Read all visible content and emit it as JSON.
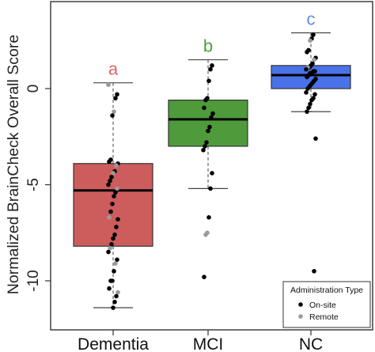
{
  "chart_data": {
    "type": "boxplot",
    "title": "",
    "xlabel": "",
    "ylabel": "Normalized BrainCheck Overall Score",
    "ylim": [
      -12.5,
      4.5
    ],
    "y_ticks": [
      0,
      -5,
      -10
    ],
    "y_tick_labels": [
      "0",
      "-5",
      "-10"
    ],
    "grid": false,
    "categories": [
      "Dementia",
      "MCI",
      "NC"
    ],
    "groups": [
      {
        "name": "Dementia",
        "letter": "a",
        "box_color": "#cd5c5c",
        "letter_color": "#e06666",
        "stats": {
          "whisker_low": -11.4,
          "q1": -8.2,
          "median": -5.3,
          "q3": -3.9,
          "whisker_high": 0.3
        },
        "points": [
          {
            "y": 0.2,
            "admin": "Remote"
          },
          {
            "y": -0.3,
            "admin": "On-site"
          },
          {
            "y": -0.5,
            "admin": "On-site"
          },
          {
            "y": -1.2,
            "admin": "Remote"
          },
          {
            "y": -1.4,
            "admin": "On-site"
          },
          {
            "y": -3.7,
            "admin": "On-site"
          },
          {
            "y": -3.8,
            "admin": "On-site"
          },
          {
            "y": -3.9,
            "admin": "On-site"
          },
          {
            "y": -4.0,
            "admin": "Remote"
          },
          {
            "y": -4.3,
            "admin": "On-site"
          },
          {
            "y": -4.4,
            "admin": "Remote"
          },
          {
            "y": -4.6,
            "admin": "On-site"
          },
          {
            "y": -4.8,
            "admin": "On-site"
          },
          {
            "y": -5.0,
            "admin": "On-site"
          },
          {
            "y": -5.2,
            "admin": "Remote"
          },
          {
            "y": -5.4,
            "admin": "On-site"
          },
          {
            "y": -5.6,
            "admin": "On-site"
          },
          {
            "y": -6.0,
            "admin": "On-site"
          },
          {
            "y": -6.4,
            "admin": "On-site"
          },
          {
            "y": -6.7,
            "admin": "Remote"
          },
          {
            "y": -6.8,
            "admin": "On-site"
          },
          {
            "y": -7.2,
            "admin": "On-site"
          },
          {
            "y": -7.6,
            "admin": "On-site"
          },
          {
            "y": -7.8,
            "admin": "On-site"
          },
          {
            "y": -8.1,
            "admin": "On-site"
          },
          {
            "y": -8.3,
            "admin": "Remote"
          },
          {
            "y": -8.5,
            "admin": "On-site"
          },
          {
            "y": -8.9,
            "admin": "On-site"
          },
          {
            "y": -9.1,
            "admin": "Remote"
          },
          {
            "y": -9.5,
            "admin": "On-site"
          },
          {
            "y": -10.0,
            "admin": "On-site"
          },
          {
            "y": -10.0,
            "admin": "On-site"
          },
          {
            "y": -10.4,
            "admin": "On-site"
          },
          {
            "y": -10.6,
            "admin": "Remote"
          },
          {
            "y": -10.8,
            "admin": "On-site"
          },
          {
            "y": -11.1,
            "admin": "On-site"
          },
          {
            "y": -11.4,
            "admin": "On-site"
          }
        ]
      },
      {
        "name": "MCI",
        "letter": "b",
        "box_color": "#4f9a3a",
        "letter_color": "#4aa23a",
        "stats": {
          "whisker_low": -5.2,
          "q1": -3.0,
          "median": -1.6,
          "q3": -0.6,
          "whisker_high": 1.5
        },
        "points": [
          {
            "y": 1.2,
            "admin": "On-site"
          },
          {
            "y": 1.0,
            "admin": "On-site"
          },
          {
            "y": 0.4,
            "admin": "On-site"
          },
          {
            "y": -0.5,
            "admin": "On-site"
          },
          {
            "y": -0.6,
            "admin": "On-site"
          },
          {
            "y": -1.0,
            "admin": "On-site"
          },
          {
            "y": -1.3,
            "admin": "On-site"
          },
          {
            "y": -1.5,
            "admin": "On-site"
          },
          {
            "y": -2.0,
            "admin": "On-site"
          },
          {
            "y": -2.2,
            "admin": "On-site"
          },
          {
            "y": -2.8,
            "admin": "On-site"
          },
          {
            "y": -3.0,
            "admin": "On-site"
          },
          {
            "y": -3.2,
            "admin": "On-site"
          },
          {
            "y": -4.4,
            "admin": "On-site"
          },
          {
            "y": -5.2,
            "admin": "On-site"
          },
          {
            "y": -6.7,
            "admin": "On-site"
          },
          {
            "y": -7.5,
            "admin": "Remote"
          },
          {
            "y": -7.6,
            "admin": "Remote"
          },
          {
            "y": -9.8,
            "admin": "On-site"
          }
        ]
      },
      {
        "name": "NC",
        "letter": "c",
        "box_color": "#4a72e8",
        "letter_color": "#5b8ee6",
        "stats": {
          "whisker_low": -1.2,
          "q1": 0.0,
          "median": 0.7,
          "q3": 1.2,
          "whisker_high": 2.9
        },
        "points": [
          {
            "y": 2.8,
            "admin": "On-site"
          },
          {
            "y": 2.6,
            "admin": "On-site"
          },
          {
            "y": 2.5,
            "admin": "Remote"
          },
          {
            "y": 2.0,
            "admin": "On-site"
          },
          {
            "y": 1.9,
            "admin": "On-site"
          },
          {
            "y": 1.6,
            "admin": "On-site"
          },
          {
            "y": 1.5,
            "admin": "Remote"
          },
          {
            "y": 1.3,
            "admin": "On-site"
          },
          {
            "y": 1.2,
            "admin": "On-site"
          },
          {
            "y": 1.1,
            "admin": "On-site"
          },
          {
            "y": 1.1,
            "admin": "Remote"
          },
          {
            "y": 1.0,
            "admin": "On-site"
          },
          {
            "y": 0.9,
            "admin": "On-site"
          },
          {
            "y": 0.9,
            "admin": "On-site"
          },
          {
            "y": 0.8,
            "admin": "On-site"
          },
          {
            "y": 0.8,
            "admin": "On-site"
          },
          {
            "y": 0.7,
            "admin": "On-site"
          },
          {
            "y": 0.6,
            "admin": "On-site"
          },
          {
            "y": 0.5,
            "admin": "On-site"
          },
          {
            "y": 0.4,
            "admin": "On-site"
          },
          {
            "y": 0.3,
            "admin": "On-site"
          },
          {
            "y": 0.2,
            "admin": "On-site"
          },
          {
            "y": 0.1,
            "admin": "On-site"
          },
          {
            "y": 0.0,
            "admin": "On-site"
          },
          {
            "y": -0.2,
            "admin": "On-site"
          },
          {
            "y": -0.3,
            "admin": "On-site"
          },
          {
            "y": -0.5,
            "admin": "On-site"
          },
          {
            "y": -0.6,
            "admin": "On-site"
          },
          {
            "y": -0.8,
            "admin": "On-site"
          },
          {
            "y": -1.0,
            "admin": "On-site"
          },
          {
            "y": -1.2,
            "admin": "On-site"
          },
          {
            "y": -2.6,
            "admin": "On-site"
          },
          {
            "y": -9.5,
            "admin": "On-site"
          }
        ]
      }
    ],
    "legend": {
      "title": "Administration Type",
      "placement": "bottom-right",
      "items": [
        {
          "label": "On-site",
          "color": "#000000"
        },
        {
          "label": "Remote",
          "color": "#9a9a9a"
        }
      ]
    }
  }
}
